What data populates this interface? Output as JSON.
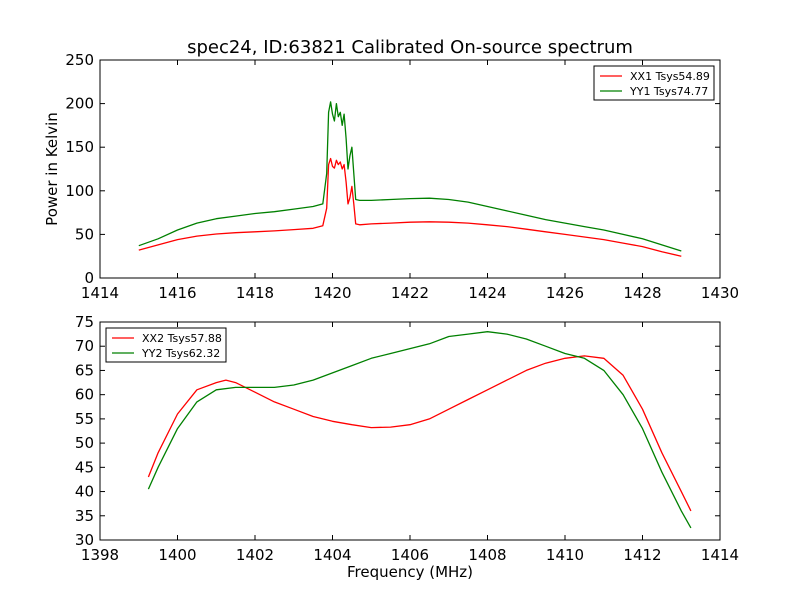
{
  "figure_title": "spec24, ID:63821 Calibrated On-source spectrum",
  "colors": {
    "xx": "#ff0000",
    "yy": "#008000"
  },
  "chart_data": [
    {
      "type": "line",
      "title": "spec24, ID:63821 Calibrated On-source spectrum",
      "xlabel": "",
      "ylabel": "Power in Kelvin",
      "xlim": [
        1414,
        1430
      ],
      "ylim": [
        0,
        250
      ],
      "xticks": [
        "1414",
        "1416",
        "1418",
        "1420",
        "1422",
        "1424",
        "1426",
        "1428",
        "1430"
      ],
      "yticks": [
        "0",
        "50",
        "100",
        "150",
        "200",
        "250"
      ],
      "legend_position": "top-right",
      "grid": false,
      "series": [
        {
          "name": "XX1 Tsys54.89",
          "color": "#ff0000",
          "x": [
            1415.0,
            1415.5,
            1416.0,
            1416.5,
            1417.0,
            1417.5,
            1418.0,
            1418.5,
            1419.0,
            1419.5,
            1419.75,
            1419.85,
            1419.9,
            1419.95,
            1420.0,
            1420.05,
            1420.1,
            1420.15,
            1420.2,
            1420.25,
            1420.3,
            1420.35,
            1420.4,
            1420.45,
            1420.5,
            1420.55,
            1420.6,
            1420.7,
            1421.0,
            1421.5,
            1422.0,
            1422.5,
            1423.0,
            1423.5,
            1424.0,
            1424.5,
            1425.0,
            1425.5,
            1426.0,
            1426.5,
            1427.0,
            1427.5,
            1428.0,
            1428.5,
            1429.0
          ],
          "y": [
            32,
            38,
            44,
            48,
            50.5,
            52,
            53,
            54,
            55.5,
            57,
            60,
            80,
            130,
            137,
            128,
            126,
            135,
            130,
            133,
            125,
            130,
            110,
            85,
            92,
            105,
            85,
            62,
            61,
            62,
            63,
            64,
            64.5,
            64,
            63,
            61,
            59,
            56,
            53,
            50,
            47,
            44,
            40,
            36,
            30,
            25
          ]
        },
        {
          "name": "YY1 Tsys74.77",
          "color": "#008000",
          "x": [
            1415.0,
            1415.5,
            1416.0,
            1416.5,
            1417.0,
            1417.5,
            1418.0,
            1418.5,
            1419.0,
            1419.5,
            1419.75,
            1419.85,
            1419.9,
            1419.95,
            1420.0,
            1420.05,
            1420.1,
            1420.15,
            1420.2,
            1420.25,
            1420.3,
            1420.35,
            1420.4,
            1420.45,
            1420.5,
            1420.55,
            1420.6,
            1420.7,
            1421.0,
            1421.5,
            1422.0,
            1422.5,
            1423.0,
            1423.5,
            1424.0,
            1424.5,
            1425.0,
            1425.5,
            1426.0,
            1426.5,
            1427.0,
            1427.5,
            1428.0,
            1428.5,
            1429.0
          ],
          "y": [
            37,
            45,
            55,
            63,
            68,
            71,
            74,
            76,
            79,
            82,
            85,
            120,
            190,
            202,
            188,
            180,
            200,
            185,
            190,
            175,
            188,
            160,
            125,
            140,
            150,
            120,
            90,
            89,
            89,
            90,
            91,
            91.5,
            90,
            87,
            82,
            77,
            72,
            67,
            63,
            59,
            55,
            50,
            45,
            38,
            31
          ]
        }
      ]
    },
    {
      "type": "line",
      "title": "",
      "xlabel": "Frequency (MHz)",
      "ylabel": "",
      "xlim": [
        1398,
        1414
      ],
      "ylim": [
        30,
        75
      ],
      "xticks": [
        "1398",
        "1400",
        "1402",
        "1404",
        "1406",
        "1408",
        "1410",
        "1412",
        "1414"
      ],
      "yticks": [
        "30",
        "35",
        "40",
        "45",
        "50",
        "55",
        "60",
        "65",
        "70",
        "75"
      ],
      "legend_position": "top-left",
      "grid": false,
      "series": [
        {
          "name": "XX2 Tsys57.88",
          "color": "#ff0000",
          "x": [
            1399.25,
            1399.5,
            1400.0,
            1400.5,
            1401.0,
            1401.25,
            1401.5,
            1402.0,
            1402.5,
            1403.0,
            1403.5,
            1404.0,
            1404.5,
            1405.0,
            1405.5,
            1406.0,
            1406.5,
            1407.0,
            1407.5,
            1408.0,
            1408.5,
            1409.0,
            1409.5,
            1410.0,
            1410.5,
            1411.0,
            1411.5,
            1412.0,
            1412.5,
            1413.0,
            1413.25
          ],
          "y": [
            43,
            48,
            56,
            61,
            62.5,
            63,
            62.5,
            60.5,
            58.5,
            57,
            55.5,
            54.5,
            53.8,
            53.2,
            53.3,
            53.8,
            55,
            57,
            59,
            61,
            63,
            65,
            66.5,
            67.5,
            68,
            67.5,
            64,
            57,
            48,
            40,
            36
          ]
        },
        {
          "name": "YY2 Tsys62.32",
          "color": "#008000",
          "x": [
            1399.25,
            1399.5,
            1400.0,
            1400.5,
            1401.0,
            1401.5,
            1402.0,
            1402.5,
            1403.0,
            1403.5,
            1404.0,
            1404.5,
            1405.0,
            1405.5,
            1406.0,
            1406.5,
            1407.0,
            1407.5,
            1408.0,
            1408.5,
            1409.0,
            1409.5,
            1410.0,
            1410.5,
            1411.0,
            1411.5,
            1412.0,
            1412.5,
            1413.0,
            1413.25
          ],
          "y": [
            40.5,
            45,
            53,
            58.5,
            61,
            61.5,
            61.5,
            61.5,
            62,
            63,
            64.5,
            66,
            67.5,
            68.5,
            69.5,
            70.5,
            72,
            72.5,
            73,
            72.5,
            71.5,
            70,
            68.5,
            67.5,
            65,
            60,
            53,
            44,
            36,
            32.5
          ]
        }
      ]
    }
  ]
}
